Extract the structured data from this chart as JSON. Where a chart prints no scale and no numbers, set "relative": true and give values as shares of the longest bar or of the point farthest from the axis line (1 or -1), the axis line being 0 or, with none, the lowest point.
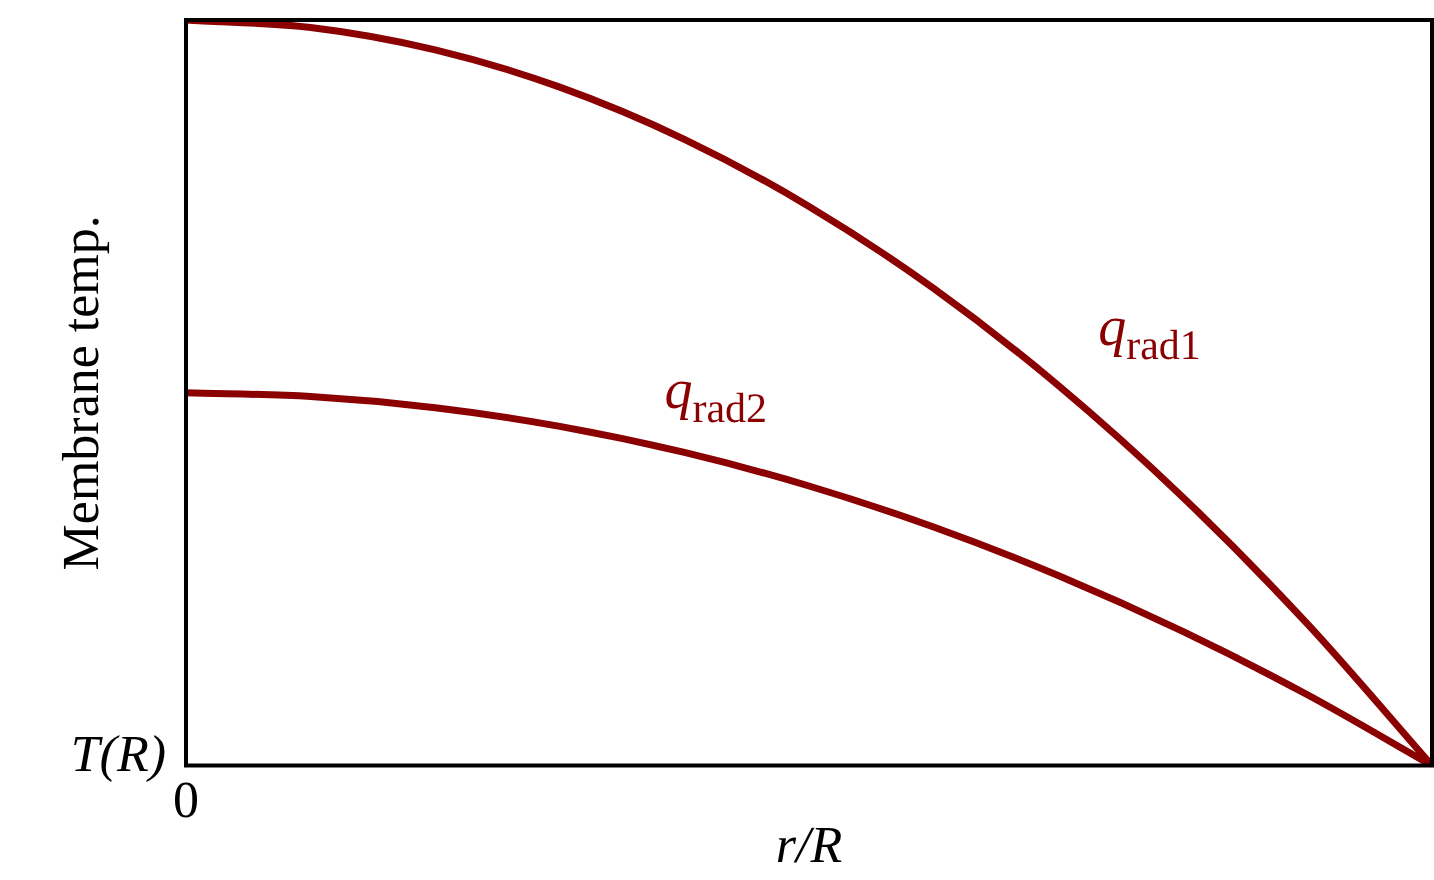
{
  "chart_data": {
    "type": "line",
    "xlabel": "r/R",
    "ylabel": "Membrane temp.",
    "relative": true,
    "categories": [
      null,
      null,
      null,
      null,
      null,
      null,
      null,
      null,
      null,
      null,
      null
    ],
    "series": [
      {
        "name": "q$_{rad1}$",
        "color": "#8b0000",
        "values": [
          1,
          0.99,
          0.96,
          0.91,
          0.84,
          0.75,
          0.64,
          0.51,
          0.36,
          0.19,
          0
        ]
      },
      {
        "name": "q$_{rad2}$",
        "color": "#8b0000",
        "values": [
          0.5,
          0.495,
          0.48,
          0.455,
          0.42,
          0.375,
          0.32,
          0.255,
          0.18,
          0.095,
          0
        ]
      }
    ],
    "annotations": [
      "T(R)",
      "0"
    ],
    "legend": false,
    "marker": "none",
    "line_style": "solid"
  }
}
